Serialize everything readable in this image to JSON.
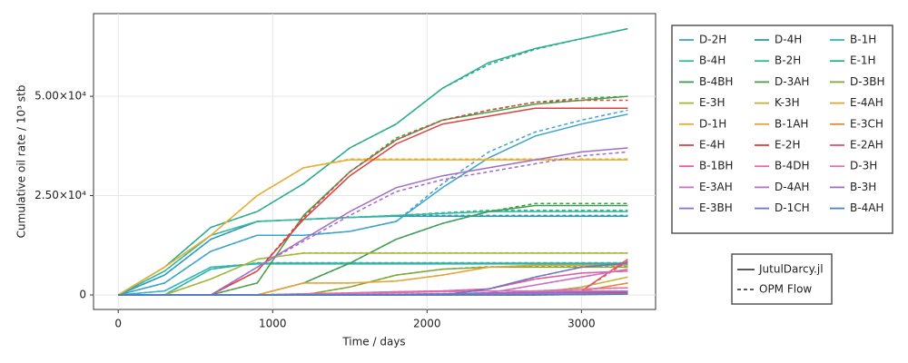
{
  "chart_data": {
    "type": "line",
    "xlabel": "Time / days",
    "ylabel": "Cumulative oil rate / 10³ stb",
    "x": [
      0,
      300,
      600,
      900,
      1200,
      1500,
      1800,
      2100,
      2400,
      2700,
      3000,
      3300
    ],
    "xlim": [
      -160,
      3480
    ],
    "xticks": [
      0,
      1000,
      2000,
      3000
    ],
    "ylim": [
      -3650,
      70800
    ],
    "yticks": [
      0,
      {
        "value": 25000,
        "label": "2.50×10⁴"
      },
      {
        "value": 50000,
        "label": "5.00×10⁴"
      }
    ],
    "grid": true,
    "legend": "right",
    "line_styles": [
      {
        "name": "JutulDarcy.jl",
        "dash": "solid"
      },
      {
        "name": "OPM Flow",
        "dash": "dashed"
      }
    ],
    "series": [
      {
        "name": "D-2H",
        "color": "#3da3cc",
        "values": [
          0,
          3000,
          11000,
          15000,
          15000,
          16000,
          18500,
          27000,
          34500,
          40000,
          43000,
          45500
        ],
        "opm_values": [
          0,
          3000,
          11000,
          15000,
          15000,
          16000,
          18500,
          28000,
          36000,
          41000,
          44000,
          46500
        ]
      },
      {
        "name": "D-4H",
        "color": "#2a9bb8",
        "values": [
          0,
          5000,
          14000,
          18500,
          19000,
          19500,
          19800,
          19800,
          19800,
          19800,
          19800,
          19800
        ],
        "opm_values": [
          0,
          5000,
          14000,
          18500,
          19000,
          19500,
          20000,
          20000,
          20000,
          20000,
          20000,
          20000
        ]
      },
      {
        "name": "B-1H",
        "color": "#33b5c9",
        "values": [
          0,
          1000,
          7000,
          7800,
          7800,
          7800,
          7800,
          7800,
          7800,
          7800,
          7800,
          7800
        ],
        "opm_values": [
          0,
          1000,
          7000,
          7900,
          7900,
          7900,
          7900,
          7900,
          7900,
          7900,
          7900,
          7900
        ]
      },
      {
        "name": "B-4H",
        "color": "#35b89a",
        "values": [
          0,
          6000,
          15000,
          18500,
          19000,
          19500,
          20000,
          20500,
          21000,
          21000,
          21000,
          21000
        ],
        "opm_values": [
          0,
          6000,
          15000,
          18500,
          19000,
          19500,
          20000,
          20700,
          21300,
          21300,
          21300,
          21300
        ]
      },
      {
        "name": "B-2H",
        "color": "#2fb596",
        "values": [
          0,
          0,
          6500,
          8000,
          8000,
          8000,
          8000,
          8000,
          8000,
          8000,
          8000,
          8000
        ],
        "opm_values": [
          0,
          0,
          6500,
          8100,
          8100,
          8100,
          8100,
          8100,
          8100,
          8100,
          8100,
          8100
        ]
      },
      {
        "name": "E-1H",
        "color": "#29ad8c",
        "values": [
          0,
          7000,
          17000,
          21000,
          28000,
          37000,
          43000,
          52000,
          58500,
          62000,
          64500,
          67000
        ],
        "opm_values": [
          0,
          7000,
          17000,
          21000,
          28000,
          37000,
          43000,
          52000,
          58000,
          61800,
          64500,
          67000
        ]
      },
      {
        "name": "B-4BH",
        "color": "#3a9e4f",
        "values": [
          0,
          0,
          0,
          0,
          3000,
          8000,
          14000,
          18000,
          21000,
          22500,
          22500,
          22500
        ],
        "opm_values": [
          0,
          0,
          0,
          0,
          3000,
          8000,
          14000,
          18000,
          21000,
          23000,
          23000,
          23000
        ]
      },
      {
        "name": "D-3AH",
        "color": "#4aa048",
        "values": [
          0,
          0,
          0,
          3000,
          20000,
          31000,
          39000,
          44000,
          46000,
          48000,
          49000,
          50000
        ],
        "opm_values": [
          0,
          0,
          0,
          3000,
          20000,
          31000,
          39500,
          44000,
          46500,
          48500,
          49500,
          50000
        ]
      },
      {
        "name": "D-3BH",
        "color": "#7fa832",
        "values": [
          0,
          0,
          0,
          0,
          0,
          2000,
          5000,
          6500,
          7000,
          7000,
          7000,
          7000
        ],
        "opm_values": [
          0,
          0,
          0,
          0,
          0,
          2000,
          5000,
          6500,
          7100,
          7100,
          7100,
          7100
        ]
      },
      {
        "name": "E-3H",
        "color": "#a5b63a",
        "values": [
          0,
          0,
          4000,
          9000,
          10500,
          10500,
          10500,
          10500,
          10500,
          10500,
          10500,
          10500
        ],
        "opm_values": [
          0,
          0,
          4000,
          9000,
          10600,
          10600,
          10600,
          10600,
          10600,
          10600,
          10600,
          10600
        ]
      },
      {
        "name": "K-3H",
        "color": "#bfb33a",
        "values": [
          0,
          0,
          0,
          0,
          0,
          0,
          0,
          0,
          0,
          500,
          2000,
          4500
        ],
        "opm_values": [
          0,
          0,
          0,
          0,
          0,
          0,
          0,
          0,
          0,
          500,
          2000,
          4500
        ]
      },
      {
        "name": "E-4AH",
        "color": "#d9a836",
        "values": [
          0,
          0,
          0,
          0,
          0,
          0,
          0,
          0,
          0,
          0,
          100,
          300
        ],
        "opm_values": [
          0,
          0,
          0,
          0,
          0,
          0,
          0,
          0,
          0,
          0,
          100,
          300
        ]
      },
      {
        "name": "D-1H",
        "color": "#e8ac2e",
        "values": [
          0,
          7000,
          15000,
          25000,
          32000,
          34000,
          34000,
          34000,
          34000,
          34000,
          34000,
          34000
        ],
        "opm_values": [
          0,
          7000,
          15000,
          25000,
          32000,
          34200,
          34200,
          34200,
          34200,
          34200,
          34200,
          34200
        ]
      },
      {
        "name": "B-1AH",
        "color": "#e8a23a",
        "values": [
          0,
          0,
          0,
          0,
          3000,
          3000,
          3500,
          5000,
          7000,
          7500,
          7500,
          7500
        ],
        "opm_values": [
          0,
          0,
          0,
          0,
          3000,
          3000,
          3500,
          5000,
          7000,
          7500,
          7500,
          7500
        ]
      },
      {
        "name": "E-3CH",
        "color": "#e58a2e",
        "values": [
          0,
          0,
          0,
          0,
          0,
          0,
          0,
          0,
          0,
          0,
          1000,
          3000
        ],
        "opm_values": [
          0,
          0,
          0,
          0,
          0,
          0,
          0,
          0,
          0,
          0,
          1000,
          3000
        ]
      },
      {
        "name": "E-4H",
        "color": "#dd4040",
        "values": [
          0,
          0,
          0,
          6000,
          19000,
          30000,
          38000,
          43000,
          45000,
          47000,
          47000,
          47000
        ],
        "opm_values": [
          0,
          0,
          0,
          6000,
          19500,
          31000,
          39000,
          44000,
          46500,
          48500,
          49000,
          49000
        ]
      },
      {
        "name": "E-2H",
        "color": "#e0403c",
        "values": [
          0,
          0,
          0,
          0,
          0,
          0,
          0,
          0,
          300,
          500,
          500,
          500
        ],
        "opm_values": [
          0,
          0,
          0,
          0,
          0,
          0,
          0,
          0,
          300,
          500,
          500,
          500
        ]
      },
      {
        "name": "E-2AH",
        "color": "#e35566",
        "values": [
          0,
          0,
          0,
          0,
          0,
          0,
          0,
          0,
          0,
          0,
          1000,
          9000
        ],
        "opm_values": [
          0,
          0,
          0,
          0,
          0,
          0,
          0,
          0,
          0,
          0,
          1000,
          8500
        ]
      },
      {
        "name": "B-1BH",
        "color": "#e05e9a",
        "values": [
          0,
          0,
          0,
          0,
          300,
          500,
          800,
          1000,
          1500,
          4000,
          5500,
          6000
        ],
        "opm_values": [
          0,
          0,
          0,
          0,
          300,
          500,
          800,
          1000,
          1500,
          4000,
          5500,
          6000
        ]
      },
      {
        "name": "B-4DH",
        "color": "#e56aa8",
        "values": [
          0,
          0,
          0,
          0,
          0,
          0,
          0,
          0,
          200,
          1000,
          1500,
          1800
        ],
        "opm_values": [
          0,
          0,
          0,
          0,
          0,
          0,
          0,
          0,
          200,
          1000,
          1500,
          1800
        ]
      },
      {
        "name": "D-3H",
        "color": "#d873b8",
        "values": [
          0,
          0,
          0,
          0,
          200,
          400,
          600,
          800,
          1000,
          1000,
          1000,
          1000
        ],
        "opm_values": [
          0,
          0,
          0,
          0,
          200,
          400,
          600,
          800,
          1000,
          1000,
          1000,
          1000
        ]
      },
      {
        "name": "E-3AH",
        "color": "#cf6fc2",
        "values": [
          0,
          0,
          0,
          0,
          0,
          0,
          0,
          0,
          500,
          2500,
          4500,
          6500
        ],
        "opm_values": [
          0,
          0,
          0,
          0,
          0,
          0,
          0,
          0,
          500,
          2500,
          4500,
          6500
        ]
      },
      {
        "name": "D-4AH",
        "color": "#b56fc8",
        "values": [
          0,
          0,
          0,
          0,
          0,
          100,
          200,
          300,
          300,
          300,
          300,
          300
        ],
        "opm_values": [
          0,
          0,
          0,
          0,
          0,
          100,
          200,
          300,
          300,
          300,
          300,
          300
        ]
      },
      {
        "name": "B-3H",
        "color": "#a06dc6",
        "values": [
          0,
          0,
          0,
          7000,
          14000,
          21000,
          27000,
          30000,
          32000,
          34000,
          36000,
          37000
        ],
        "opm_values": [
          0,
          0,
          0,
          7000,
          13500,
          20000,
          26000,
          29000,
          31000,
          33000,
          35000,
          36000
        ]
      },
      {
        "name": "E-3BH",
        "color": "#8a72c0",
        "values": [
          0,
          0,
          0,
          0,
          0,
          0,
          0,
          300,
          500,
          600,
          700,
          800
        ],
        "opm_values": [
          0,
          0,
          0,
          0,
          0,
          0,
          0,
          300,
          500,
          600,
          700,
          800
        ]
      },
      {
        "name": "D-1CH",
        "color": "#6e74c0",
        "values": [
          0,
          0,
          0,
          0,
          0,
          0,
          0,
          0,
          1500,
          4500,
          7000,
          8000
        ],
        "opm_values": [
          0,
          0,
          0,
          0,
          0,
          0,
          0,
          0,
          1500,
          4500,
          7000,
          8000
        ]
      },
      {
        "name": "B-4AH",
        "color": "#4f7fc0",
        "values": [
          0,
          0,
          0,
          0,
          0,
          0,
          0,
          0,
          0,
          0,
          100,
          200
        ],
        "opm_values": [
          0,
          0,
          0,
          0,
          0,
          0,
          0,
          0,
          0,
          0,
          100,
          200
        ]
      }
    ]
  }
}
